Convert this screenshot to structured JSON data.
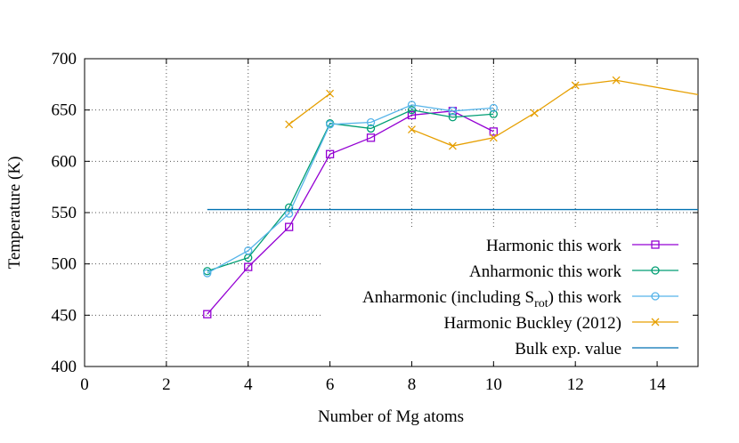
{
  "chart_data": {
    "type": "line",
    "xlabel": "Number of Mg atoms",
    "ylabel": "Temperature (K)",
    "xlim": [
      0,
      15
    ],
    "ylim": [
      400,
      700
    ],
    "xticks": [
      0,
      2,
      4,
      6,
      8,
      10,
      12,
      14
    ],
    "yticks": [
      400,
      450,
      500,
      550,
      600,
      650,
      700
    ],
    "grid": true,
    "legend_position": "bottom-right",
    "series": [
      {
        "name": "Harmonic this work",
        "color": "#9400d3",
        "marker": "square",
        "x": [
          3,
          4,
          5,
          6,
          7,
          8,
          9,
          10
        ],
        "y": [
          451,
          497,
          536,
          607,
          623,
          645,
          649,
          629
        ]
      },
      {
        "name": "Anharmonic this work",
        "color": "#009e73",
        "marker": "circle",
        "x": [
          3,
          4,
          5,
          6,
          7,
          8,
          9,
          10
        ],
        "y": [
          493,
          506,
          555,
          637,
          632,
          650,
          643,
          646
        ]
      },
      {
        "name": "Anharmonic (including S_rot) this work",
        "name_main": "Anharmonic (including S",
        "name_sub": "rot",
        "name_tail": ") this work",
        "color": "#56b4e9",
        "marker": "circle",
        "x": [
          3,
          4,
          5,
          6,
          7,
          8,
          9,
          10
        ],
        "y": [
          491,
          513,
          549,
          636,
          638,
          655,
          649,
          652
        ]
      },
      {
        "name": "Harmonic Buckley (2012)",
        "color": "#e69f00",
        "marker": "x",
        "segments": [
          {
            "x": [
              5,
              6
            ],
            "y": [
              636,
              666
            ]
          },
          {
            "x": [
              8,
              9,
              10,
              11,
              12,
              13,
              15
            ],
            "y": [
              631,
              615,
              623,
              647,
              674,
              679,
              665
            ]
          }
        ]
      },
      {
        "name": "Bulk exp. value",
        "color": "#0072b2",
        "marker": "none",
        "x": [
          3,
          15
        ],
        "y": [
          553,
          553
        ]
      }
    ]
  }
}
